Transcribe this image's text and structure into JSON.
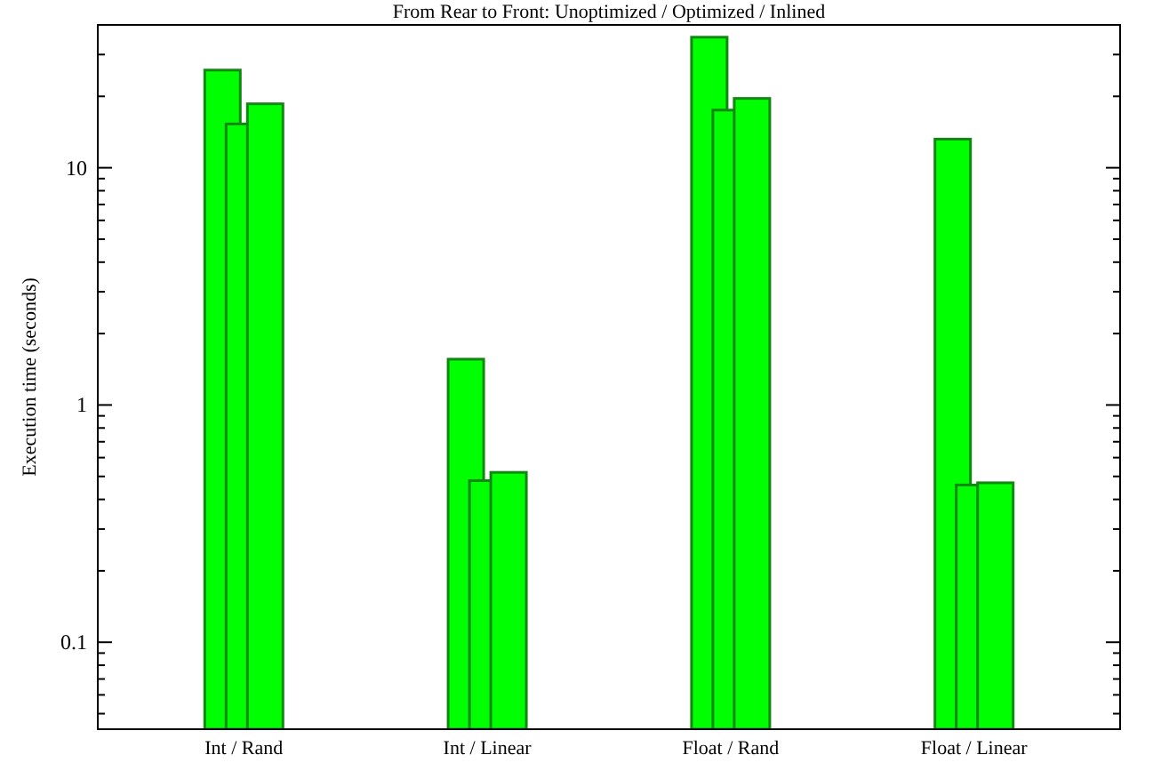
{
  "chart_data": {
    "type": "bar",
    "title": "From Rear to Front: Unoptimized / Optimized / Inlined",
    "ylabel": "Execution time (seconds)",
    "categories": [
      "Int / Rand",
      "Int / Linear",
      "Float / Rand",
      "Float / Linear"
    ],
    "series": [
      {
        "color": "#00ff00",
        "values": [
          25.8,
          1.56,
          35.5,
          13.2
        ]
      },
      {
        "color": "#00ff00",
        "values": [
          15.3,
          0.48,
          17.5,
          0.46
        ]
      },
      {
        "color": "#00ff00",
        "values": [
          18.6,
          0.52,
          19.6,
          0.47
        ]
      }
    ],
    "log": true,
    "ylim": [
      0.043,
      40
    ],
    "yticks": [
      {
        "value": 0.05,
        "label": null
      },
      {
        "value": 0.06,
        "label": null
      },
      {
        "value": 0.07,
        "label": null
      },
      {
        "value": 0.08,
        "label": null
      },
      {
        "value": 0.09,
        "label": null
      },
      0.1,
      {
        "value": 0.2,
        "label": null
      },
      {
        "value": 0.3,
        "label": null
      },
      {
        "value": 0.4,
        "label": null
      },
      {
        "value": 0.5,
        "label": null
      },
      {
        "value": 0.6,
        "label": null
      },
      {
        "value": 0.7,
        "label": null
      },
      {
        "value": 0.8,
        "label": null
      },
      {
        "value": 0.9,
        "label": null
      },
      1,
      {
        "value": 2,
        "label": null
      },
      {
        "value": 3,
        "label": null
      },
      {
        "value": 4,
        "label": null
      },
      {
        "value": 5,
        "label": null
      },
      {
        "value": 6,
        "label": null
      },
      {
        "value": 7,
        "label": null
      },
      {
        "value": 8,
        "label": null
      },
      {
        "value": 9,
        "label": null
      },
      10,
      {
        "value": 20,
        "label": null
      },
      {
        "value": 30,
        "label": null
      },
      {
        "value": 40,
        "label": null
      }
    ]
  }
}
